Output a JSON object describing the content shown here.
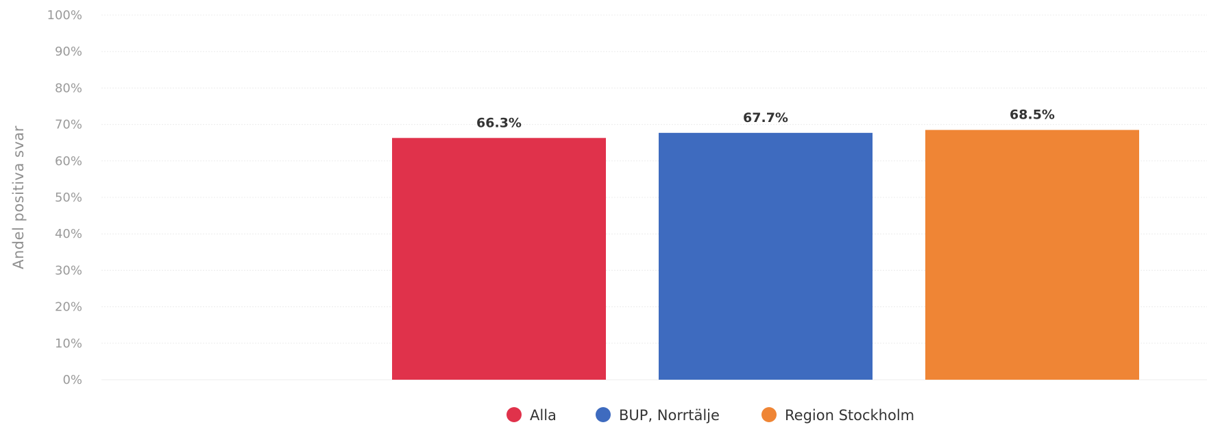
{
  "chart_data": {
    "type": "bar",
    "ylabel": "Andel positiva svar",
    "xlabel": "",
    "ylim": [
      0,
      100
    ],
    "yticks": [
      "0%",
      "10%",
      "20%",
      "30%",
      "40%",
      "50%",
      "60%",
      "70%",
      "80%",
      "90%",
      "100%"
    ],
    "grid": true,
    "legend_position": "bottom",
    "series": [
      {
        "name": "Alla",
        "value": 66.3,
        "label": "66.3%",
        "color": "#e0324b"
      },
      {
        "name": "BUP, Norrtälje",
        "value": 67.7,
        "label": "67.7%",
        "color": "#3e6bbf"
      },
      {
        "name": "Region Stockholm",
        "value": 68.5,
        "label": "68.5%",
        "color": "#ef8535"
      }
    ]
  }
}
